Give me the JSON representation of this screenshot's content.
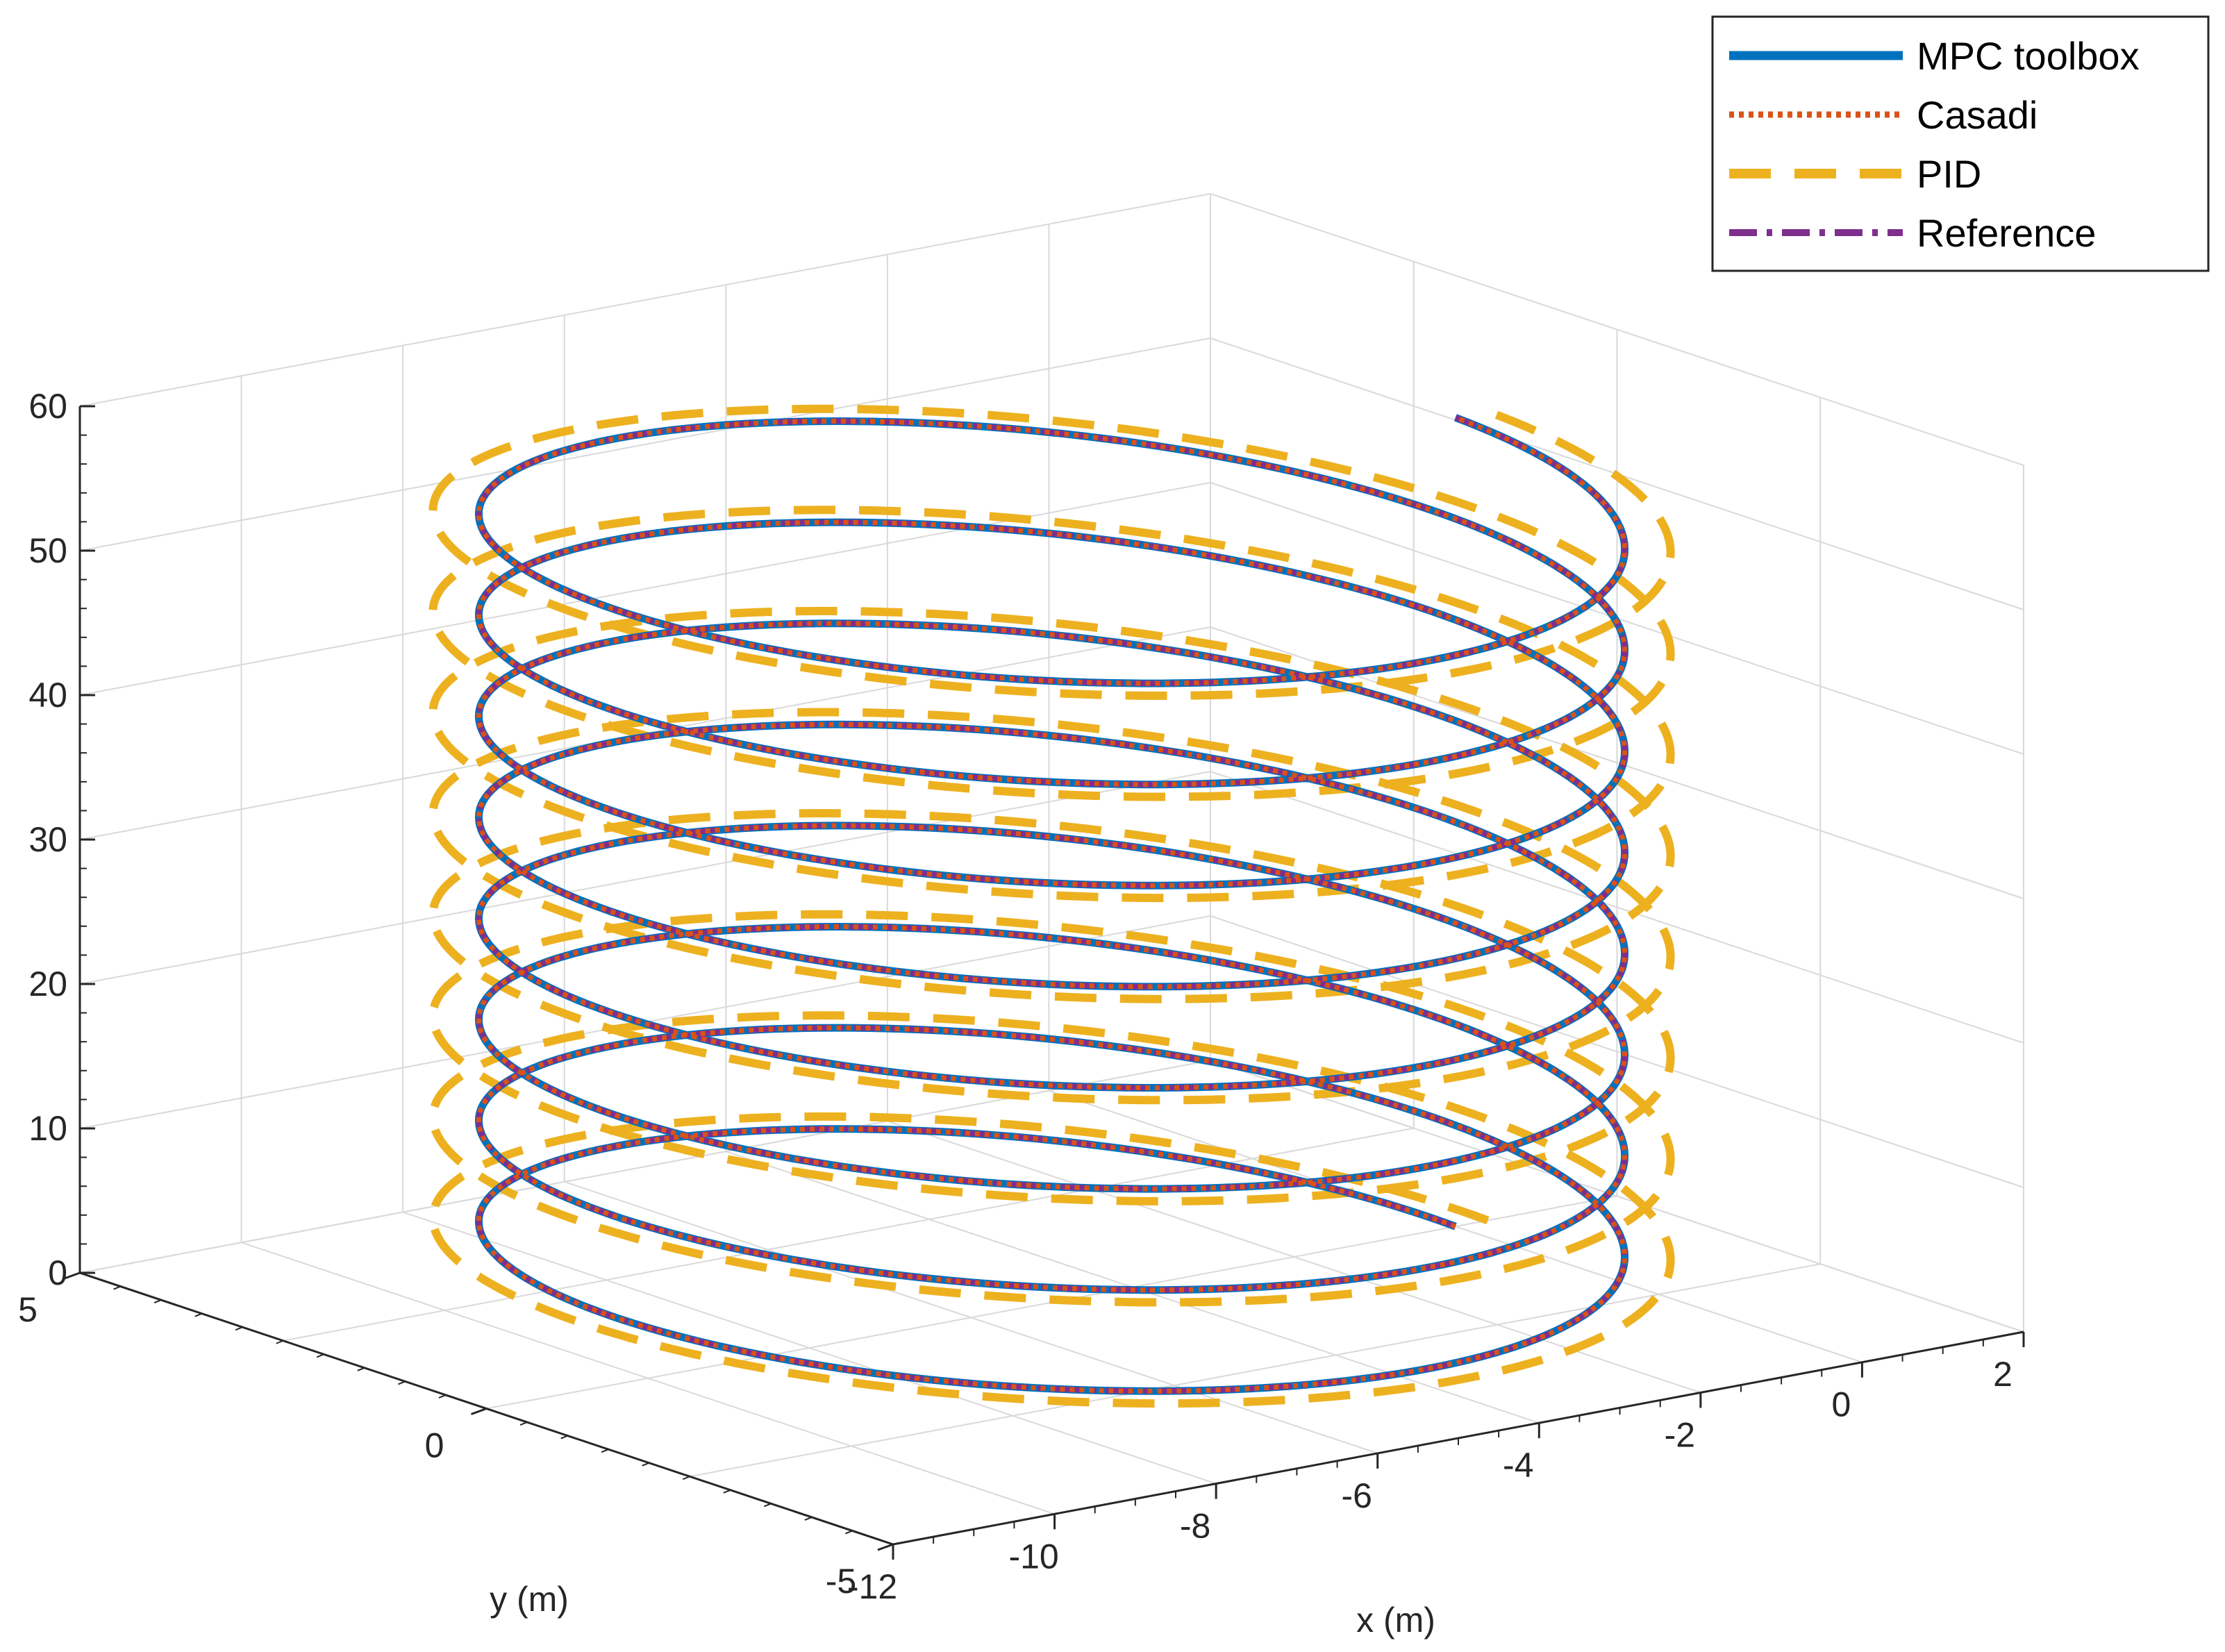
{
  "chart_data": {
    "type": "line",
    "projection": "3d",
    "title": "",
    "xlabel": "x (m)",
    "ylabel": "y (m)",
    "zlabel": "",
    "xlim": [
      -12,
      2
    ],
    "ylim": [
      -5,
      5
    ],
    "zlim": [
      0,
      60
    ],
    "x_ticks": [
      -12,
      -10,
      -8,
      -6,
      -4,
      -2,
      0,
      2
    ],
    "y_ticks": [
      -5,
      0,
      5
    ],
    "z_ticks": [
      0,
      10,
      20,
      30,
      40,
      50,
      60
    ],
    "grid": true,
    "legend_position": "top-right",
    "trajectory": {
      "shape": "helix",
      "center_x": -5,
      "center_y": 0,
      "radius": 5,
      "turns": 8,
      "z_start": 0,
      "z_end": 56
    },
    "series": [
      {
        "name": "MPC toolbox",
        "color": "#0072BD",
        "style": "solid",
        "radius_offset": 0
      },
      {
        "name": "Casadi",
        "color": "#D95319",
        "style": "dotted",
        "radius_offset": 0
      },
      {
        "name": "PID",
        "color": "#EDB120",
        "style": "dashed",
        "radius_offset": 0.4
      },
      {
        "name": "Reference",
        "color": "#7E2F8E",
        "style": "dashdot",
        "radius_offset": 0
      }
    ]
  }
}
